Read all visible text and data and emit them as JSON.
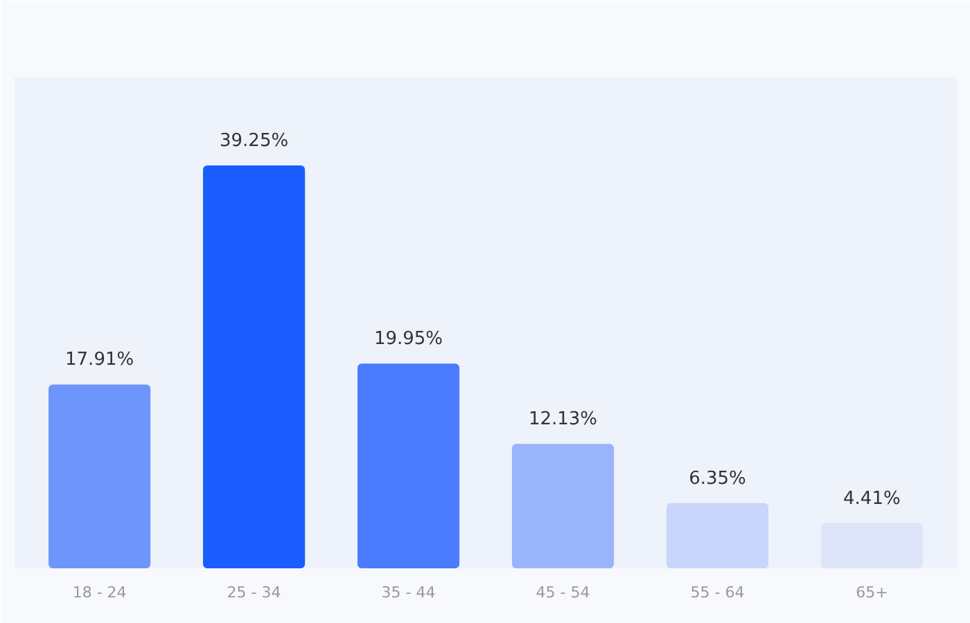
{
  "chart_data": {
    "type": "bar",
    "categories": [
      "18 - 24",
      "25 - 34",
      "35 - 44",
      "45 - 54",
      "55 - 64",
      "65+"
    ],
    "values": [
      17.91,
      39.25,
      19.95,
      12.13,
      6.35,
      4.41
    ],
    "colors": [
      "#6e95fb",
      "#1a5cff",
      "#4a7dfd",
      "#9ab4fb",
      "#c9d5fa",
      "#dfe5f9"
    ],
    "value_labels": [
      "17.91%",
      "39.25%",
      "19.95%",
      "12.13%",
      "6.35%",
      "4.41%"
    ],
    "grid": false
  }
}
